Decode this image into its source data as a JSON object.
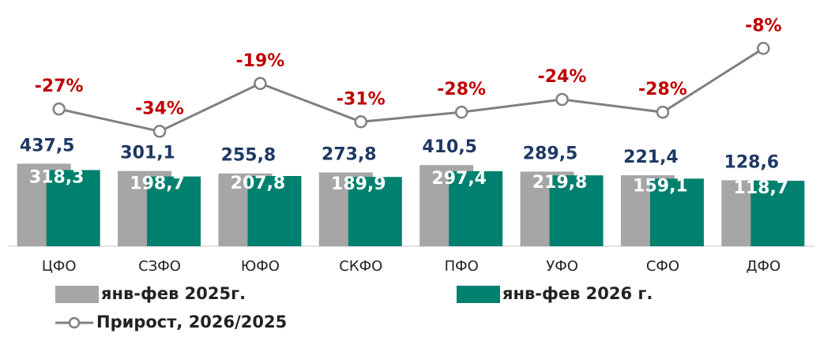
{
  "chart_data": {
    "type": "bar",
    "categories": [
      "ЦФО",
      "СЗФО",
      "ЮФО",
      "СКФО",
      "ПФО",
      "УФО",
      "СФО",
      "ДФО"
    ],
    "series": [
      {
        "name": "янв-фев 2025г.",
        "color": "#a6a6a6",
        "values": [
          437.5,
          301.1,
          255.8,
          273.8,
          410.5,
          289.5,
          221.4,
          128.6
        ],
        "value_labels": [
          "437,5",
          "301,1",
          "255,8",
          "273,8",
          "410,5",
          "289,5",
          "221,4",
          "128,6"
        ]
      },
      {
        "name": "янв-фев 2026 г.",
        "color": "#00806e",
        "values": [
          318.3,
          198.7,
          207.8,
          189.9,
          297.4,
          219.8,
          159.1,
          118.7
        ],
        "value_labels": [
          "318,3",
          "198,7",
          "207,8",
          "189,9",
          "297,4",
          "219,8",
          "159,1",
          "118,7"
        ]
      },
      {
        "name": "Прирост, 2026/2025",
        "type": "line",
        "axis": "y2",
        "color": "#808080",
        "values": [
          -27,
          -34,
          -19,
          -31,
          -28,
          -24,
          -28,
          -8
        ],
        "value_labels": [
          "-27%",
          "-34%",
          "-19%",
          "-31%",
          "-28%",
          "-24%",
          "-28%",
          "-8%"
        ]
      }
    ],
    "ylim": [
      -1100,
      3000
    ],
    "y2lim": [
      -70,
      -1
    ]
  }
}
